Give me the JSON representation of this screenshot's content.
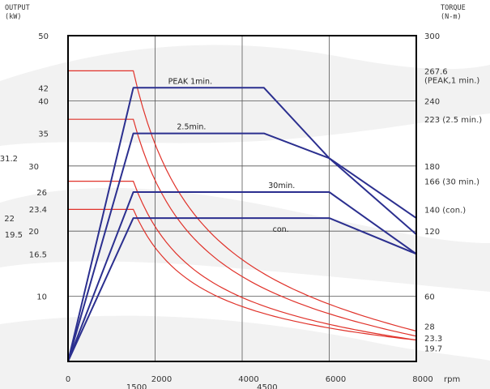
{
  "chart_data": {
    "type": "line",
    "title": "",
    "left_axis": {
      "label_line1": "OUTPUT",
      "label_line2": "(kW)",
      "ylim": [
        0,
        50
      ],
      "ticks": [
        {
          "value": 50,
          "label": "50"
        },
        {
          "value": 42,
          "label": "42"
        },
        {
          "value": 40,
          "label": "40"
        },
        {
          "value": 35,
          "label": "35"
        },
        {
          "value": 31.2,
          "label": "31.2"
        },
        {
          "value": 30,
          "label": "30"
        },
        {
          "value": 26,
          "label": "26"
        },
        {
          "value": 23.4,
          "label": "23.4"
        },
        {
          "value": 22,
          "label": "22"
        },
        {
          "value": 20,
          "label": "20"
        },
        {
          "value": 19.5,
          "label": "19.5"
        },
        {
          "value": 16.5,
          "label": "16.5"
        },
        {
          "value": 10,
          "label": "10"
        }
      ]
    },
    "right_axis": {
      "label_line1": "TORQUE",
      "label_line2": "(N-m)",
      "ylim": [
        0,
        300
      ],
      "ticks": [
        {
          "value": 300,
          "label": "300"
        },
        {
          "value": 267.6,
          "label": "267.6",
          "sub": "(PEAK,1 min.)"
        },
        {
          "value": 240,
          "label": "240"
        },
        {
          "value": 223,
          "label": "223 (2.5 min.)"
        },
        {
          "value": 180,
          "label": "180"
        },
        {
          "value": 166,
          "label": "166 (30 min.)"
        },
        {
          "value": 140,
          "label": "140 (con.)"
        },
        {
          "value": 120,
          "label": "120"
        },
        {
          "value": 60,
          "label": "60"
        },
        {
          "value": 28,
          "label": "28"
        },
        {
          "value": 23.3,
          "label": "23.3"
        },
        {
          "value": 19.7,
          "label": "19.7"
        }
      ]
    },
    "x_axis": {
      "unit": "rpm",
      "xlim": [
        0,
        8000
      ],
      "ticks": [
        {
          "value": 0,
          "label": "0"
        },
        {
          "value": 2000,
          "label": "2000"
        },
        {
          "value": 4000,
          "label": "4000"
        },
        {
          "value": 6000,
          "label": "6000"
        },
        {
          "value": 8000,
          "label": "8000"
        }
      ],
      "sub_ticks": [
        {
          "value": 1500,
          "label": "1500"
        },
        {
          "value": 4500,
          "label": "4500"
        }
      ]
    },
    "grid": true,
    "output_series": [
      {
        "name": "PEAK 1min.",
        "color": "#2b2f8f",
        "points": [
          [
            0,
            0
          ],
          [
            1500,
            42
          ],
          [
            4500,
            42
          ],
          [
            6000,
            31.2
          ],
          [
            8000,
            22
          ]
        ]
      },
      {
        "name": "2.5min.",
        "color": "#2b2f8f",
        "points": [
          [
            0,
            0
          ],
          [
            1500,
            35
          ],
          [
            4500,
            35
          ],
          [
            6000,
            31.2
          ],
          [
            8000,
            19.5
          ]
        ]
      },
      {
        "name": "30min.",
        "color": "#2b2f8f",
        "points": [
          [
            0,
            0
          ],
          [
            1500,
            26
          ],
          [
            6000,
            26
          ],
          [
            8000,
            16.5
          ]
        ]
      },
      {
        "name": "con.",
        "color": "#2b2f8f",
        "points": [
          [
            0,
            0
          ],
          [
            1500,
            22
          ],
          [
            6000,
            22
          ],
          [
            8000,
            16.5
          ]
        ]
      }
    ],
    "torque_series": [
      {
        "name": "PEAK 1min.",
        "color": "#e0322a",
        "torque_low": 267.6,
        "base_rpm": 1500,
        "torque_high": 28
      },
      {
        "name": "2.5min.",
        "color": "#e0322a",
        "torque_low": 223,
        "base_rpm": 1500,
        "torque_high": 23.3
      },
      {
        "name": "30min.",
        "color": "#e0322a",
        "torque_low": 166,
        "base_rpm": 1500,
        "torque_high": 19.7
      },
      {
        "name": "con.",
        "color": "#e0322a",
        "torque_low": 140,
        "base_rpm": 1500,
        "torque_high": 19.7
      }
    ],
    "annotations": [
      {
        "text": "PEAK 1min.",
        "x": 2300,
        "y": 43
      },
      {
        "text": "2.5min.",
        "x": 2500,
        "y": 36
      },
      {
        "text": "30min.",
        "x": 4600,
        "y": 27
      },
      {
        "text": "con.",
        "x": 4700,
        "y": 20.3
      }
    ]
  }
}
